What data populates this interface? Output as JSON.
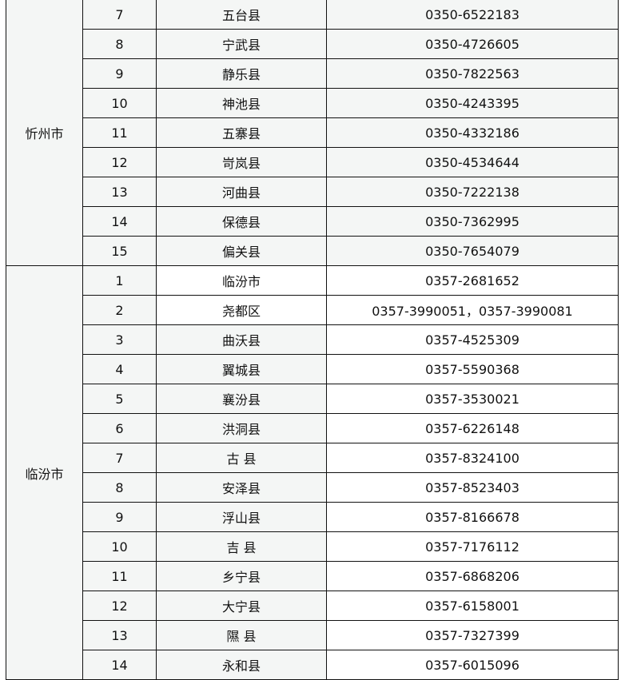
{
  "groups": [
    {
      "city": "忻州市",
      "rows": [
        {
          "no": "7",
          "county": "五台县",
          "phone": "0350-6522183"
        },
        {
          "no": "8",
          "county": "宁武县",
          "phone": "0350-4726605"
        },
        {
          "no": "9",
          "county": "静乐县",
          "phone": "0350-7822563"
        },
        {
          "no": "10",
          "county": "神池县",
          "phone": "0350-4243395"
        },
        {
          "no": "11",
          "county": "五寨县",
          "phone": "0350-4332186"
        },
        {
          "no": "12",
          "county": "岢岚县",
          "phone": "0350-4534644"
        },
        {
          "no": "13",
          "county": "河曲县",
          "phone": "0350-7222138"
        },
        {
          "no": "14",
          "county": "保德县",
          "phone": "0350-7362995"
        },
        {
          "no": "15",
          "county": "偏关县",
          "phone": "0350-7654079"
        }
      ]
    },
    {
      "city": "临汾市",
      "rows": [
        {
          "no": "1",
          "county": "临汾市",
          "phone": "0357-2681652"
        },
        {
          "no": "2",
          "county": "尧都区",
          "phone": "0357-3990051，0357-3990081"
        },
        {
          "no": "3",
          "county": "曲沃县",
          "phone": "0357-4525309"
        },
        {
          "no": "4",
          "county": "翼城县",
          "phone": "0357-5590368"
        },
        {
          "no": "5",
          "county": "襄汾县",
          "phone": "0357-3530021"
        },
        {
          "no": "6",
          "county": "洪洞县",
          "phone": "0357-6226148"
        },
        {
          "no": "7",
          "county": "古 县",
          "phone": "0357-8324100"
        },
        {
          "no": "8",
          "county": "安泽县",
          "phone": "0357-8523403"
        },
        {
          "no": "9",
          "county": "浮山县",
          "phone": "0357-8166678"
        },
        {
          "no": "10",
          "county": "吉 县",
          "phone": "0357-7176112"
        },
        {
          "no": "11",
          "county": "乡宁县",
          "phone": "0357-6868206"
        },
        {
          "no": "12",
          "county": "大宁县",
          "phone": "0357-6158001"
        },
        {
          "no": "13",
          "county": "隰 县",
          "phone": "0357-7327399"
        },
        {
          "no": "14",
          "county": "永和县",
          "phone": "0357-6015096"
        }
      ]
    }
  ]
}
